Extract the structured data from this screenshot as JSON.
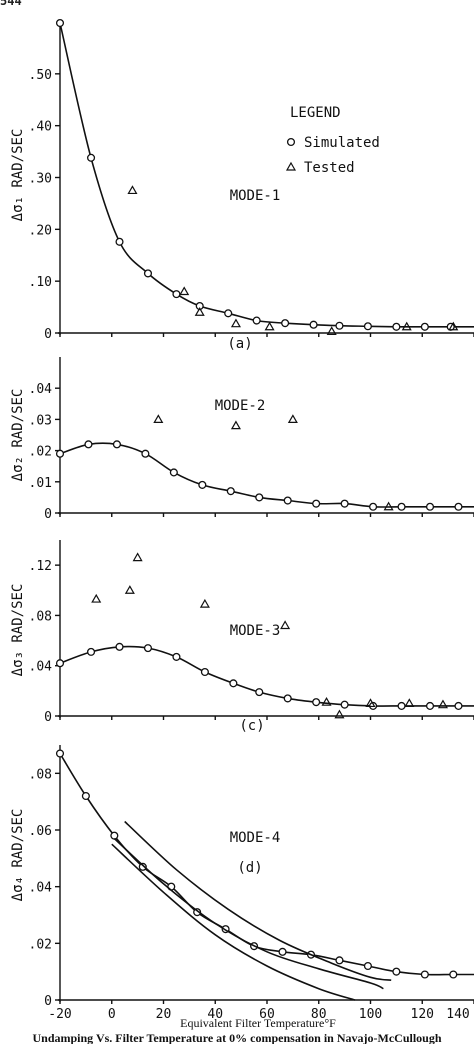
{
  "page_number": "544",
  "xaxis": {
    "label": "Equivalent Filter Temperature°F",
    "ticks": [
      -20,
      0,
      20,
      40,
      60,
      80,
      100,
      120,
      140
    ],
    "tick_labels": [
      "-20",
      "0",
      "20",
      "40",
      "60",
      "80",
      "100",
      "120",
      "140"
    ],
    "xlim": [
      -20,
      140
    ]
  },
  "caption": "Undamping Vs. Filter Temperature at 0% compensation in Navajo-McCullough",
  "legend": {
    "title": "LEGEND",
    "items": [
      {
        "marker": "circle",
        "label": "Simulated"
      },
      {
        "marker": "triangle",
        "label": "Tested"
      }
    ]
  },
  "chart_data": [
    {
      "type": "line",
      "panel_label": "(a)",
      "annotation": "MODE-1",
      "ylabel": "Δσ₁ RAD/SEC",
      "ylim": [
        0,
        0.6
      ],
      "yticks": [
        0,
        0.1,
        0.2,
        0.3,
        0.4,
        0.5
      ],
      "ytick_labels": [
        "0",
        ".10",
        ".20",
        ".30",
        ".40",
        ".50"
      ],
      "series": [
        {
          "name": "Simulated",
          "marker": "circle",
          "x": [
            -20,
            -8,
            3,
            14,
            25,
            34,
            45,
            56,
            67,
            78,
            88,
            99,
            110,
            121,
            131,
            142
          ],
          "y": [
            0.598,
            0.338,
            0.176,
            0.115,
            0.075,
            0.052,
            0.038,
            0.024,
            0.019,
            0.016,
            0.014,
            0.013,
            0.012,
            0.012,
            0.012,
            0.012
          ]
        },
        {
          "name": "Tested",
          "marker": "triangle",
          "x": [
            8,
            28,
            34,
            48,
            61,
            85,
            114,
            132
          ],
          "y": [
            0.275,
            0.08,
            0.04,
            0.018,
            0.012,
            0.003,
            0.012,
            0.012
          ]
        }
      ]
    },
    {
      "type": "line",
      "panel_label": "",
      "annotation": "MODE-2",
      "ylabel": "Δσ₂ RAD/SEC",
      "ylim": [
        0,
        0.05
      ],
      "yticks": [
        0,
        0.01,
        0.02,
        0.03,
        0.04
      ],
      "ytick_labels": [
        "0",
        ".01",
        ".02",
        ".03",
        ".04"
      ],
      "series": [
        {
          "name": "Simulated",
          "marker": "circle",
          "x": [
            -20,
            -9,
            2,
            13,
            24,
            35,
            46,
            57,
            68,
            79,
            90,
            101,
            112,
            123,
            134,
            142
          ],
          "y": [
            0.019,
            0.022,
            0.022,
            0.019,
            0.013,
            0.009,
            0.007,
            0.005,
            0.004,
            0.003,
            0.003,
            0.002,
            0.002,
            0.002,
            0.002,
            0.002
          ]
        },
        {
          "name": "Tested",
          "marker": "triangle",
          "x": [
            18,
            48,
            70,
            107
          ],
          "y": [
            0.03,
            0.028,
            0.03,
            0.002
          ]
        }
      ]
    },
    {
      "type": "line",
      "panel_label": "(c)",
      "annotation": "MODE-3",
      "ylabel": "Δσ₃ RAD/SEC",
      "ylim": [
        0,
        0.14
      ],
      "yticks": [
        0,
        0.04,
        0.08,
        0.12
      ],
      "ytick_labels": [
        "0",
        ".04",
        ".08",
        ".12"
      ],
      "series": [
        {
          "name": "Simulated",
          "marker": "circle",
          "x": [
            -20,
            -8,
            3,
            14,
            25,
            36,
            47,
            57,
            68,
            79,
            90,
            101,
            112,
            123,
            134,
            142
          ],
          "y": [
            0.042,
            0.051,
            0.055,
            0.054,
            0.047,
            0.035,
            0.026,
            0.019,
            0.014,
            0.011,
            0.009,
            0.008,
            0.008,
            0.008,
            0.008,
            0.008
          ]
        },
        {
          "name": "Tested",
          "marker": "triangle",
          "x": [
            -6,
            7,
            10,
            36,
            67,
            83,
            88,
            100,
            115,
            128
          ],
          "y": [
            0.093,
            0.1,
            0.126,
            0.089,
            0.072,
            0.011,
            0.001,
            0.01,
            0.01,
            0.009
          ]
        }
      ]
    },
    {
      "type": "line",
      "panel_label": "(d)",
      "annotation": "MODE-4",
      "ylabel": "Δσ₄ RAD/SEC",
      "ylim": [
        0,
        0.09
      ],
      "yticks": [
        0,
        0.02,
        0.04,
        0.06,
        0.08
      ],
      "ytick_labels": [
        "0",
        ".02",
        ".04",
        ".06",
        ".08"
      ],
      "series": [
        {
          "name": "Simulated",
          "marker": "circle",
          "x": [
            -20,
            -10,
            1,
            12,
            23,
            33,
            44,
            55,
            66,
            77,
            88,
            99,
            110,
            121,
            132,
            142
          ],
          "y": [
            0.087,
            0.072,
            0.058,
            0.047,
            0.04,
            0.031,
            0.025,
            0.019,
            0.017,
            0.016,
            0.014,
            0.012,
            0.01,
            0.009,
            0.009,
            0.009
          ]
        },
        {
          "name": "",
          "marker": "none",
          "x": [
            0,
            20,
            40,
            60,
            80,
            94
          ],
          "y": [
            0.055,
            0.038,
            0.023,
            0.012,
            0.004,
            0.0
          ]
        },
        {
          "name": "",
          "marker": "none",
          "x": [
            1,
            20,
            40,
            60,
            80,
            100,
            105
          ],
          "y": [
            0.057,
            0.041,
            0.027,
            0.017,
            0.011,
            0.006,
            0.004
          ]
        },
        {
          "name": "",
          "marker": "none",
          "x": [
            5,
            25,
            45,
            65,
            85,
            100,
            108
          ],
          "y": [
            0.063,
            0.046,
            0.032,
            0.021,
            0.013,
            0.008,
            0.007
          ]
        }
      ]
    }
  ]
}
